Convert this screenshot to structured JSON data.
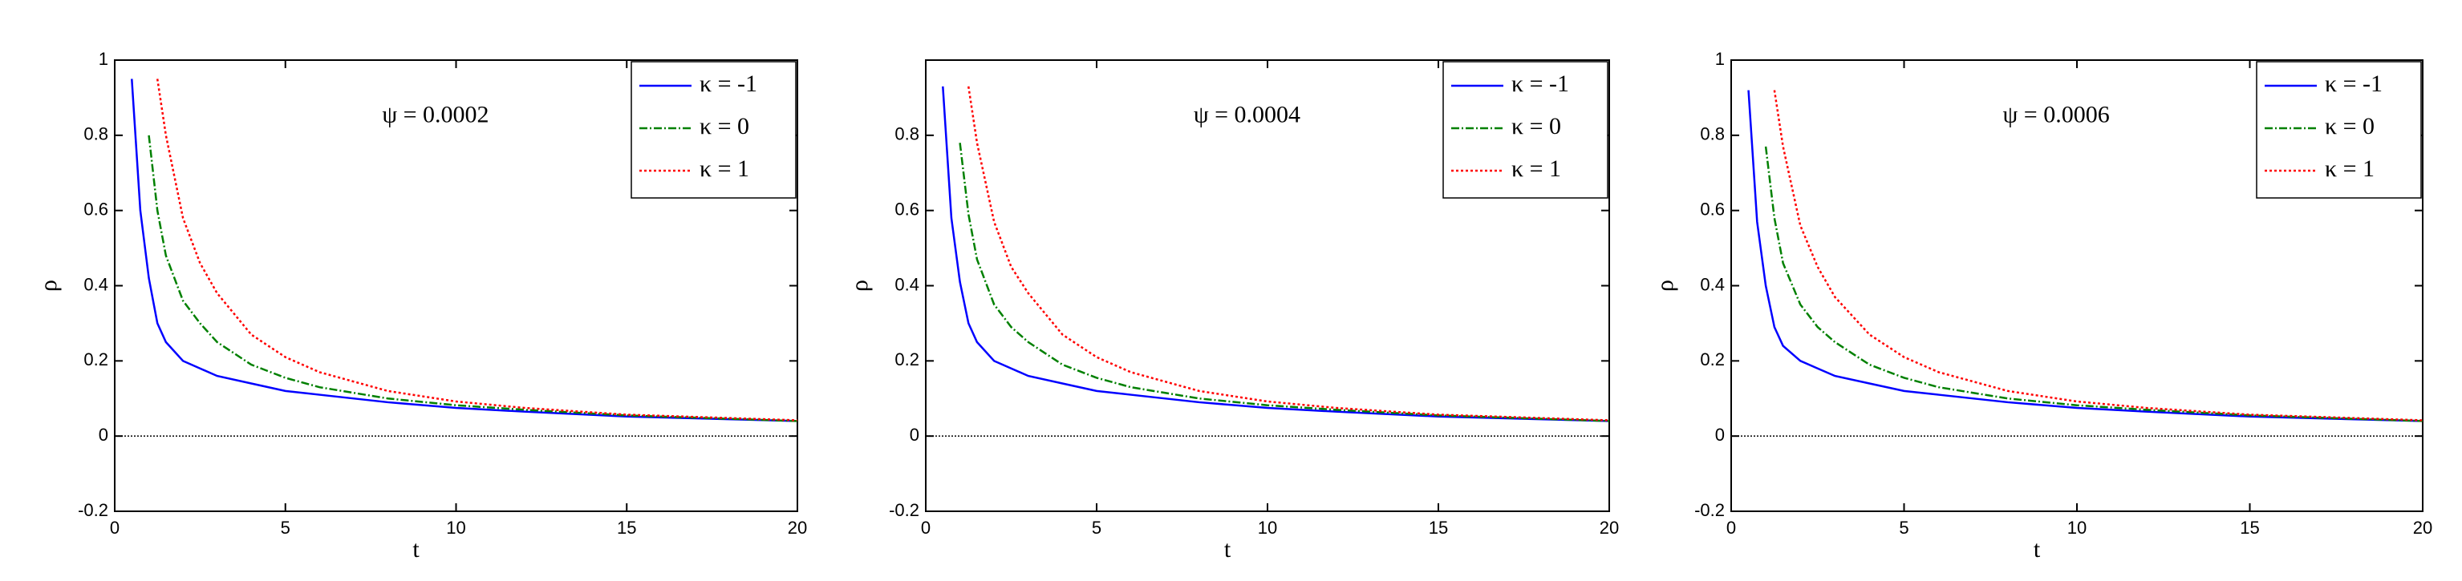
{
  "chart_data": [
    {
      "type": "line",
      "annotation": "ψ = 0.0002",
      "xlabel": "t",
      "ylabel": "ρ",
      "x": [
        0.5,
        0.75,
        1,
        1.25,
        1.5,
        2,
        2.5,
        3,
        4,
        5,
        6,
        8,
        10,
        12,
        15,
        20
      ],
      "series": [
        {
          "name": "κ = -1",
          "color": "#0000ff",
          "linestyle": "solid",
          "values": [
            0.95,
            0.6,
            0.42,
            0.3,
            0.25,
            0.2,
            0.18,
            0.16,
            0.14,
            0.12,
            0.11,
            0.09,
            0.075,
            0.065,
            0.052,
            0.04
          ]
        },
        {
          "name": "κ = 0",
          "color": "#008000",
          "linestyle": "dashdot",
          "values": [
            null,
            null,
            0.8,
            0.6,
            0.48,
            0.36,
            0.3,
            0.25,
            0.19,
            0.155,
            0.13,
            0.1,
            0.082,
            0.07,
            0.055,
            0.04
          ]
        },
        {
          "name": "κ = 1",
          "color": "#ff0000",
          "linestyle": "dotted",
          "values": [
            null,
            null,
            null,
            0.95,
            0.8,
            0.58,
            0.46,
            0.38,
            0.27,
            0.21,
            0.17,
            0.12,
            0.092,
            0.075,
            0.057,
            0.042
          ]
        }
      ],
      "hline": 0,
      "xlim": [
        0,
        20
      ],
      "ylim": [
        -0.2,
        1
      ],
      "xticks": [
        0,
        5,
        10,
        15,
        20
      ],
      "yticks": [
        -0.2,
        0,
        0.2,
        0.4,
        0.6,
        0.8,
        1
      ],
      "legend": "upper right"
    },
    {
      "type": "line",
      "annotation": "ψ = 0.0004",
      "xlabel": "t",
      "ylabel": "ρ",
      "x": [
        0.5,
        0.75,
        1,
        1.25,
        1.5,
        2,
        2.5,
        3,
        4,
        5,
        6,
        8,
        10,
        12,
        15,
        20
      ],
      "series": [
        {
          "name": "κ = -1",
          "color": "#0000ff",
          "linestyle": "solid",
          "values": [
            0.93,
            0.58,
            0.41,
            0.3,
            0.25,
            0.2,
            0.18,
            0.16,
            0.14,
            0.12,
            0.11,
            0.09,
            0.075,
            0.065,
            0.052,
            0.04
          ]
        },
        {
          "name": "κ = 0",
          "color": "#008000",
          "linestyle": "dashdot",
          "values": [
            null,
            null,
            0.78,
            0.59,
            0.47,
            0.35,
            0.29,
            0.25,
            0.19,
            0.155,
            0.13,
            0.1,
            0.082,
            0.07,
            0.055,
            0.04
          ]
        },
        {
          "name": "κ = 1",
          "color": "#ff0000",
          "linestyle": "dotted",
          "values": [
            null,
            null,
            null,
            0.93,
            0.78,
            0.57,
            0.45,
            0.38,
            0.27,
            0.21,
            0.17,
            0.12,
            0.092,
            0.075,
            0.057,
            0.042
          ]
        }
      ],
      "hline": 0,
      "xlim": [
        0,
        20
      ],
      "ylim": [
        -0.2,
        1
      ],
      "xticks": [
        0,
        5,
        10,
        15,
        20
      ],
      "yticks": [
        -0.2,
        0,
        0.2,
        0.4,
        0.6,
        0.8
      ],
      "legend": "upper right"
    },
    {
      "type": "line",
      "annotation": "ψ = 0.0006",
      "xlabel": "t",
      "ylabel": "ρ",
      "x": [
        0.5,
        0.75,
        1,
        1.25,
        1.5,
        2,
        2.5,
        3,
        4,
        5,
        6,
        8,
        10,
        12,
        15,
        20
      ],
      "series": [
        {
          "name": "κ = -1",
          "color": "#0000ff",
          "linestyle": "solid",
          "values": [
            0.92,
            0.57,
            0.4,
            0.29,
            0.24,
            0.2,
            0.18,
            0.16,
            0.14,
            0.12,
            0.11,
            0.09,
            0.075,
            0.065,
            0.052,
            0.04
          ]
        },
        {
          "name": "κ = 0",
          "color": "#008000",
          "linestyle": "dashdot",
          "values": [
            null,
            null,
            0.77,
            0.58,
            0.46,
            0.35,
            0.29,
            0.25,
            0.19,
            0.155,
            0.13,
            0.1,
            0.082,
            0.07,
            0.055,
            0.04
          ]
        },
        {
          "name": "κ = 1",
          "color": "#ff0000",
          "linestyle": "dotted",
          "values": [
            null,
            null,
            null,
            0.92,
            0.77,
            0.56,
            0.45,
            0.37,
            0.27,
            0.21,
            0.17,
            0.12,
            0.092,
            0.075,
            0.057,
            0.042
          ]
        }
      ],
      "hline": 0,
      "xlim": [
        0,
        20
      ],
      "ylim": [
        -0.2,
        1
      ],
      "xticks": [
        0,
        5,
        10,
        15,
        20
      ],
      "yticks": [
        -0.2,
        0,
        0.2,
        0.4,
        0.6,
        0.8,
        1
      ],
      "legend": "upper right"
    }
  ]
}
